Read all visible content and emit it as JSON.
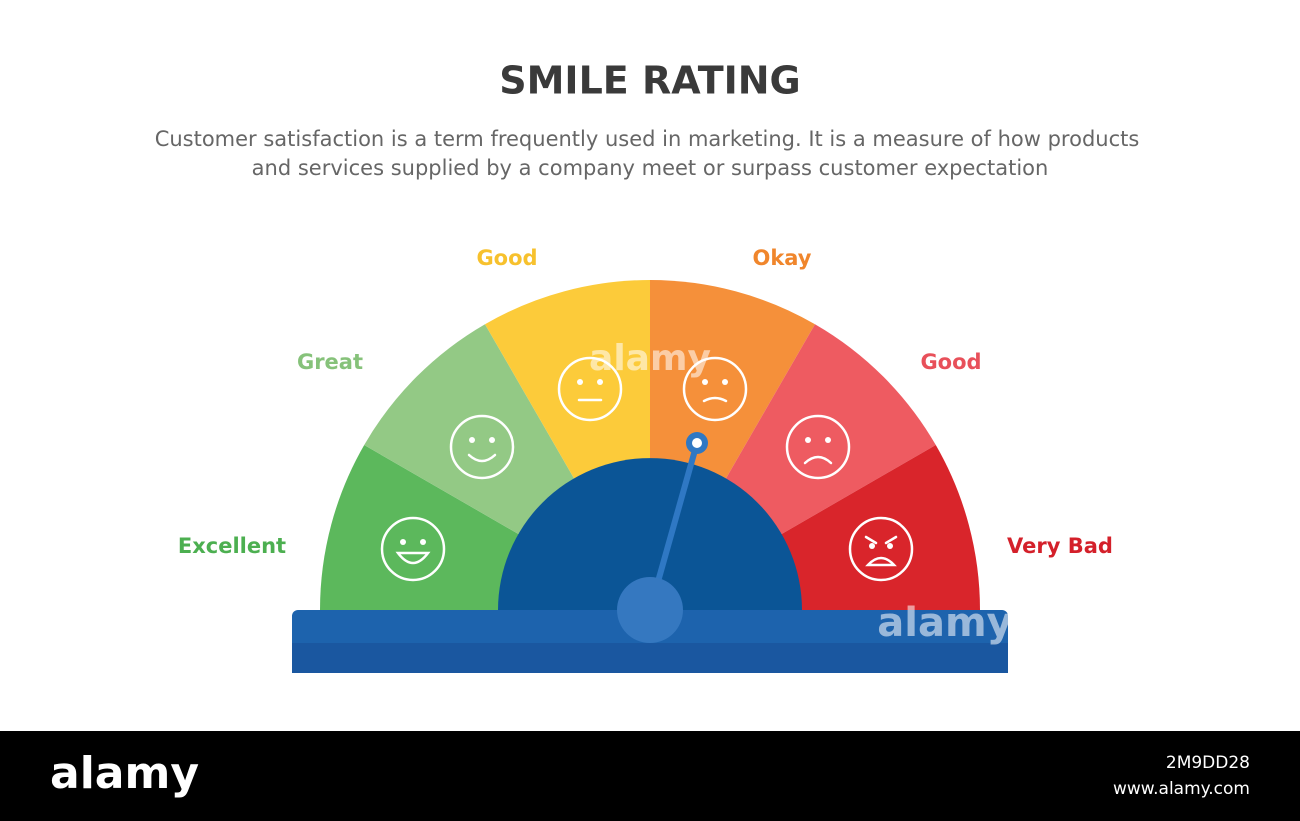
{
  "header": {
    "title": "SMILE RATING",
    "subtitle": [
      "Customer satisfaction is a term frequently used in marketing. It is a measure of how products",
      "and services supplied by a company meet or surpass customer expectation"
    ]
  },
  "segments": [
    {
      "label": "Excellent",
      "color": "#5cb85c",
      "label_color": "#4caf50"
    },
    {
      "label": "Great",
      "color": "#93c985",
      "label_color": "#86c27a"
    },
    {
      "label": "Good",
      "color": "#fccb3a",
      "label_color": "#f7c12d"
    },
    {
      "label": "Okay",
      "color": "#f5903a",
      "label_color": "#f0862c"
    },
    {
      "label": "Good",
      "color": "#ee5b61",
      "label_color": "#e8505a"
    },
    {
      "label": "Very Bad",
      "color": "#d9252b",
      "label_color": "#d4202a"
    }
  ],
  "watermark": "alamy",
  "footer": {
    "logo": "alamy",
    "image_id": "2M9DD28",
    "site": "www.alamy.com"
  }
}
